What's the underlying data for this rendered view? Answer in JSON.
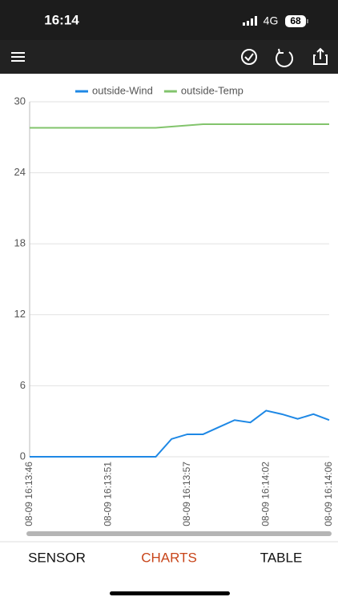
{
  "status": {
    "time": "16:14",
    "network": "4G",
    "battery": "68"
  },
  "tabs": [
    "SENSOR",
    "CHARTS",
    "TABLE"
  ],
  "chart_data": {
    "type": "line",
    "categories": [
      "08-09 16:13:46",
      null,
      null,
      null,
      null,
      "08-09 16:13:51",
      null,
      null,
      null,
      null,
      "08-09 16:13:57",
      null,
      null,
      null,
      null,
      "08-09 16:14:02",
      null,
      null,
      null,
      "08-09 16:14:06"
    ],
    "series": [
      {
        "name": "outside-Wind",
        "color": "#1e88e5",
        "values": [
          0,
          0,
          0,
          0,
          0,
          0,
          0,
          0,
          0,
          1.5,
          1.9,
          1.9,
          2.5,
          3.1,
          2.9,
          3.9,
          3.6,
          3.2,
          3.6,
          3.1
        ]
      },
      {
        "name": "outside-Temp",
        "color": "#82c46c",
        "values": [
          27.8,
          27.8,
          27.8,
          27.8,
          27.8,
          27.8,
          27.8,
          27.8,
          27.8,
          27.9,
          28.0,
          28.1,
          28.1,
          28.1,
          28.1,
          28.1,
          28.1,
          28.1,
          28.1,
          28.1
        ]
      }
    ],
    "ylim": [
      0,
      30
    ],
    "yticks": [
      0,
      6,
      12,
      18,
      24,
      30
    ],
    "grid": true,
    "legend": "top"
  }
}
